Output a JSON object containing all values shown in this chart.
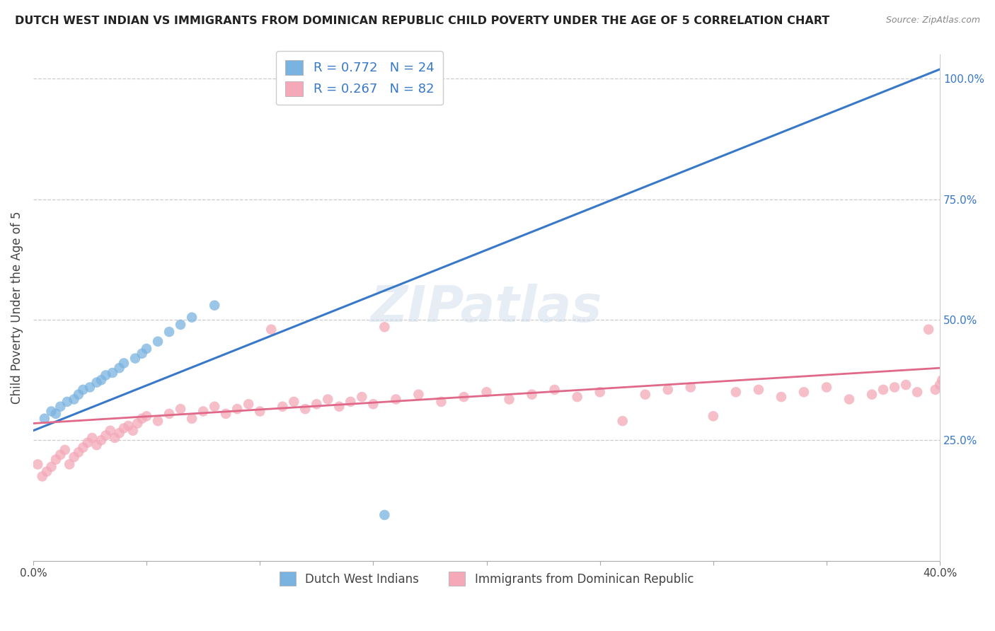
{
  "title": "DUTCH WEST INDIAN VS IMMIGRANTS FROM DOMINICAN REPUBLIC CHILD POVERTY UNDER THE AGE OF 5 CORRELATION CHART",
  "source": "Source: ZipAtlas.com",
  "ylabel": "Child Poverty Under the Age of 5",
  "x_min": 0.0,
  "x_max": 0.4,
  "y_min": 0.0,
  "y_max": 1.05,
  "right_yticks": [
    0.25,
    0.5,
    0.75,
    1.0
  ],
  "right_yticklabels": [
    "25.0%",
    "50.0%",
    "75.0%",
    "100.0%"
  ],
  "x_ticks": [
    0.0,
    0.05,
    0.1,
    0.15,
    0.2,
    0.25,
    0.3,
    0.35,
    0.4
  ],
  "x_ticklabels": [
    "0.0%",
    "",
    "",
    "",
    "",
    "",
    "",
    "",
    "40.0%"
  ],
  "blue_color": "#7ab3e0",
  "pink_color": "#f4a8b8",
  "blue_line_color": "#3878c8",
  "pink_line_color": "#e06888",
  "watermark_text": "ZIPatlas",
  "legend_blue_label": "R = 0.772   N = 24",
  "legend_pink_label": "R = 0.267   N = 82",
  "legend_blue_group": "Dutch West Indians",
  "legend_pink_group": "Immigrants from Dominican Republic",
  "blue_line_x0": 0.0,
  "blue_line_y0": 0.27,
  "blue_line_x1": 0.4,
  "blue_line_y1": 1.02,
  "pink_line_x0": 0.0,
  "pink_line_y0": 0.285,
  "pink_line_x1": 0.4,
  "pink_line_y1": 0.4,
  "blue_x": [
    0.005,
    0.008,
    0.01,
    0.012,
    0.015,
    0.018,
    0.02,
    0.022,
    0.025,
    0.028,
    0.03,
    0.032,
    0.035,
    0.038,
    0.04,
    0.045,
    0.048,
    0.05,
    0.055,
    0.06,
    0.065,
    0.07,
    0.08,
    0.155
  ],
  "blue_y": [
    0.295,
    0.31,
    0.305,
    0.32,
    0.33,
    0.335,
    0.345,
    0.355,
    0.36,
    0.37,
    0.375,
    0.385,
    0.39,
    0.4,
    0.41,
    0.42,
    0.43,
    0.44,
    0.455,
    0.475,
    0.49,
    0.505,
    0.53,
    0.095
  ],
  "pink_x": [
    0.002,
    0.004,
    0.006,
    0.008,
    0.01,
    0.012,
    0.014,
    0.016,
    0.018,
    0.02,
    0.022,
    0.024,
    0.026,
    0.028,
    0.03,
    0.032,
    0.034,
    0.036,
    0.038,
    0.04,
    0.042,
    0.044,
    0.046,
    0.048,
    0.05,
    0.055,
    0.06,
    0.065,
    0.07,
    0.075,
    0.08,
    0.085,
    0.09,
    0.095,
    0.1,
    0.105,
    0.11,
    0.115,
    0.12,
    0.125,
    0.13,
    0.135,
    0.14,
    0.145,
    0.15,
    0.155,
    0.16,
    0.17,
    0.18,
    0.19,
    0.2,
    0.21,
    0.22,
    0.23,
    0.24,
    0.25,
    0.26,
    0.27,
    0.28,
    0.29,
    0.3,
    0.31,
    0.32,
    0.33,
    0.34,
    0.35,
    0.36,
    0.37,
    0.375,
    0.38,
    0.385,
    0.39,
    0.395,
    0.398,
    0.4,
    0.401,
    0.402,
    0.403,
    0.404,
    0.405,
    0.406,
    0.407
  ],
  "pink_y": [
    0.2,
    0.175,
    0.185,
    0.195,
    0.21,
    0.22,
    0.23,
    0.2,
    0.215,
    0.225,
    0.235,
    0.245,
    0.255,
    0.24,
    0.25,
    0.26,
    0.27,
    0.255,
    0.265,
    0.275,
    0.28,
    0.27,
    0.285,
    0.295,
    0.3,
    0.29,
    0.305,
    0.315,
    0.295,
    0.31,
    0.32,
    0.305,
    0.315,
    0.325,
    0.31,
    0.48,
    0.32,
    0.33,
    0.315,
    0.325,
    0.335,
    0.32,
    0.33,
    0.34,
    0.325,
    0.485,
    0.335,
    0.345,
    0.33,
    0.34,
    0.35,
    0.335,
    0.345,
    0.355,
    0.34,
    0.35,
    0.29,
    0.345,
    0.355,
    0.36,
    0.3,
    0.35,
    0.355,
    0.34,
    0.35,
    0.36,
    0.335,
    0.345,
    0.355,
    0.36,
    0.365,
    0.35,
    0.48,
    0.355,
    0.365,
    0.375,
    0.38,
    0.36,
    0.37,
    0.38,
    0.365,
    0.375
  ]
}
